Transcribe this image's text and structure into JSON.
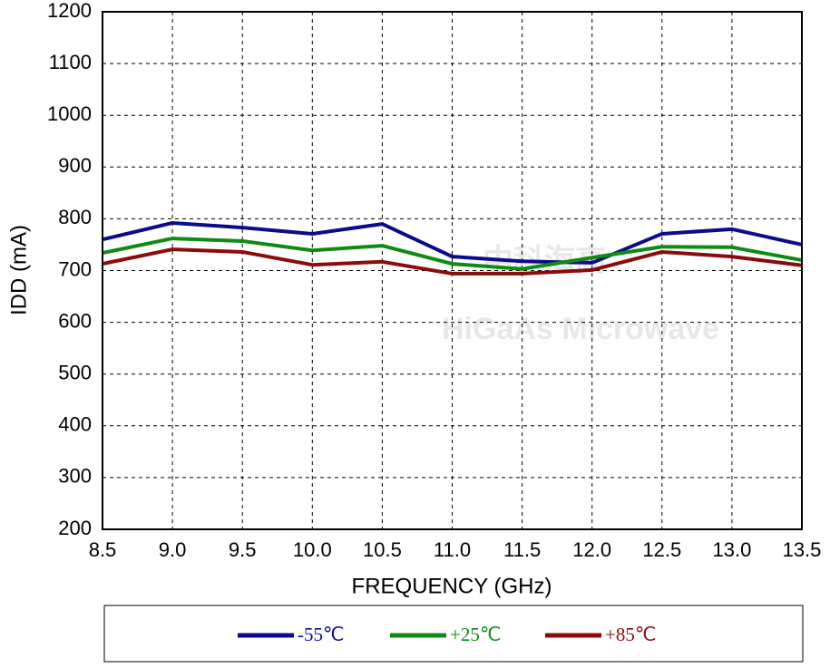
{
  "chart_data": {
    "type": "line",
    "x_label": "FREQUENCY (GHz)",
    "y_label": "IDD (mA)",
    "watermark": [
      "中科海高",
      "HiGaAs Microwave"
    ],
    "x": [
      8.5,
      9.0,
      9.5,
      10.0,
      10.5,
      11.0,
      11.5,
      12.0,
      12.5,
      13.0,
      13.5
    ],
    "series": [
      {
        "name": "-55℃",
        "color": "#0b0c8a",
        "values": [
          760,
          792,
          783,
          771,
          790,
          727,
          718,
          715,
          771,
          780,
          750
        ]
      },
      {
        "name": "+25℃",
        "color": "#0f8a12",
        "values": [
          734,
          762,
          757,
          739,
          748,
          713,
          703,
          725,
          746,
          745,
          720
        ]
      },
      {
        "name": "+85℃",
        "color": "#8b0b0b",
        "values": [
          713,
          741,
          736,
          711,
          717,
          694,
          694,
          701,
          736,
          727,
          710
        ]
      }
    ],
    "xlim": [
      8.5,
      13.5
    ],
    "xticks": [
      8.5,
      {
        "value": 9,
        "label": "9.0"
      },
      9.5,
      {
        "value": 10,
        "label": "10.0"
      },
      10.5,
      {
        "value": 11,
        "label": "11.0"
      },
      11.5,
      {
        "value": 12,
        "label": "12.0"
      },
      12.5,
      {
        "value": 13,
        "label": "13.0"
      },
      13.5
    ],
    "ylim": [
      200,
      1200
    ],
    "yticks": [
      200,
      300,
      400,
      500,
      600,
      700,
      800,
      900,
      1000,
      1100,
      1200
    ],
    "grid": true,
    "legend": "bottom"
  }
}
